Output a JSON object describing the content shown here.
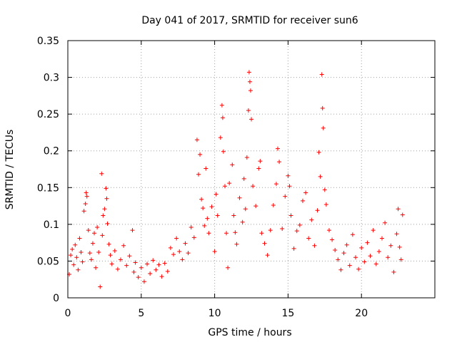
{
  "chart_data": {
    "type": "scatter",
    "title": "Day 041 of 2017, SRMTID for receiver sun6",
    "xlabel": "GPS time / hours",
    "ylabel": "SRMTID / TECUs",
    "xlim": [
      0,
      25
    ],
    "ylim": [
      0,
      0.35
    ],
    "xticks": [
      0,
      5,
      10,
      15,
      20
    ],
    "xtick_labels": [
      "0",
      "5",
      "10",
      "15",
      "20"
    ],
    "yticks": [
      0,
      0.05,
      0.1,
      0.15,
      0.2,
      0.25,
      0.3,
      0.35
    ],
    "ytick_labels": [
      "0",
      "0.05",
      "0.1",
      "0.15",
      "0.2",
      "0.25",
      "0.3",
      "0.35"
    ],
    "grid": true,
    "marker": "+",
    "color": "#ff0000",
    "series": [
      {
        "name": "SRMTID",
        "points": [
          [
            0.1,
            0.032
          ],
          [
            0.2,
            0.058
          ],
          [
            0.3,
            0.066
          ],
          [
            0.4,
            0.045
          ],
          [
            0.5,
            0.072
          ],
          [
            0.6,
            0.055
          ],
          [
            0.7,
            0.038
          ],
          [
            0.8,
            0.081
          ],
          [
            0.9,
            0.062
          ],
          [
            1.0,
            0.049
          ],
          [
            1.1,
            0.118
          ],
          [
            1.2,
            0.128
          ],
          [
            1.25,
            0.143
          ],
          [
            1.3,
            0.138
          ],
          [
            1.4,
            0.092
          ],
          [
            1.5,
            0.061
          ],
          [
            1.6,
            0.052
          ],
          [
            1.7,
            0.074
          ],
          [
            1.8,
            0.088
          ],
          [
            1.9,
            0.041
          ],
          [
            2.0,
            0.096
          ],
          [
            2.1,
            0.062
          ],
          [
            2.2,
            0.015
          ],
          [
            2.3,
            0.169
          ],
          [
            2.35,
            0.085
          ],
          [
            2.4,
            0.112
          ],
          [
            2.5,
            0.121
          ],
          [
            2.6,
            0.149
          ],
          [
            2.65,
            0.135
          ],
          [
            2.7,
            0.101
          ],
          [
            2.8,
            0.073
          ],
          [
            2.9,
            0.058
          ],
          [
            3.0,
            0.046
          ],
          [
            3.2,
            0.064
          ],
          [
            3.4,
            0.039
          ],
          [
            3.6,
            0.052
          ],
          [
            3.8,
            0.071
          ],
          [
            4.0,
            0.044
          ],
          [
            4.2,
            0.057
          ],
          [
            4.4,
            0.092
          ],
          [
            4.5,
            0.035
          ],
          [
            4.6,
            0.048
          ],
          [
            4.8,
            0.028
          ],
          [
            5.0,
            0.041
          ],
          [
            5.2,
            0.022
          ],
          [
            5.4,
            0.046
          ],
          [
            5.6,
            0.033
          ],
          [
            5.8,
            0.051
          ],
          [
            6.0,
            0.038
          ],
          [
            6.2,
            0.045
          ],
          [
            6.4,
            0.029
          ],
          [
            6.6,
            0.047
          ],
          [
            6.8,
            0.036
          ],
          [
            7.0,
            0.068
          ],
          [
            7.2,
            0.059
          ],
          [
            7.4,
            0.081
          ],
          [
            7.6,
            0.063
          ],
          [
            7.8,
            0.052
          ],
          [
            8.0,
            0.074
          ],
          [
            8.2,
            0.061
          ],
          [
            8.4,
            0.096
          ],
          [
            8.6,
            0.082
          ],
          [
            8.8,
            0.215
          ],
          [
            8.9,
            0.168
          ],
          [
            9.0,
            0.195
          ],
          [
            9.1,
            0.134
          ],
          [
            9.2,
            0.122
          ],
          [
            9.3,
            0.098
          ],
          [
            9.4,
            0.176
          ],
          [
            9.5,
            0.108
          ],
          [
            9.6,
            0.088
          ],
          [
            9.8,
            0.124
          ],
          [
            10.0,
            0.063
          ],
          [
            10.1,
            0.141
          ],
          [
            10.2,
            0.112
          ],
          [
            10.4,
            0.218
          ],
          [
            10.5,
            0.262
          ],
          [
            10.55,
            0.245
          ],
          [
            10.6,
            0.199
          ],
          [
            10.7,
            0.152
          ],
          [
            10.8,
            0.088
          ],
          [
            10.9,
            0.041
          ],
          [
            11.0,
            0.156
          ],
          [
            11.2,
            0.181
          ],
          [
            11.3,
            0.112
          ],
          [
            11.4,
            0.089
          ],
          [
            11.5,
            0.073
          ],
          [
            11.7,
            0.136
          ],
          [
            11.9,
            0.103
          ],
          [
            12.0,
            0.162
          ],
          [
            12.1,
            0.121
          ],
          [
            12.2,
            0.191
          ],
          [
            12.3,
            0.255
          ],
          [
            12.35,
            0.307
          ],
          [
            12.4,
            0.294
          ],
          [
            12.45,
            0.282
          ],
          [
            12.5,
            0.243
          ],
          [
            12.6,
            0.152
          ],
          [
            12.8,
            0.125
          ],
          [
            13.0,
            0.176
          ],
          [
            13.1,
            0.186
          ],
          [
            13.2,
            0.088
          ],
          [
            13.4,
            0.074
          ],
          [
            13.6,
            0.058
          ],
          [
            13.8,
            0.092
          ],
          [
            14.0,
            0.126
          ],
          [
            14.2,
            0.155
          ],
          [
            14.3,
            0.203
          ],
          [
            14.4,
            0.185
          ],
          [
            14.6,
            0.094
          ],
          [
            14.8,
            0.138
          ],
          [
            15.0,
            0.166
          ],
          [
            15.1,
            0.152
          ],
          [
            15.2,
            0.112
          ],
          [
            15.4,
            0.067
          ],
          [
            15.6,
            0.091
          ],
          [
            15.8,
            0.099
          ],
          [
            16.0,
            0.132
          ],
          [
            16.2,
            0.143
          ],
          [
            16.4,
            0.081
          ],
          [
            16.6,
            0.106
          ],
          [
            16.8,
            0.071
          ],
          [
            17.0,
            0.119
          ],
          [
            17.1,
            0.198
          ],
          [
            17.2,
            0.165
          ],
          [
            17.3,
            0.304
          ],
          [
            17.35,
            0.258
          ],
          [
            17.4,
            0.231
          ],
          [
            17.5,
            0.147
          ],
          [
            17.6,
            0.127
          ],
          [
            17.8,
            0.092
          ],
          [
            18.0,
            0.079
          ],
          [
            18.2,
            0.065
          ],
          [
            18.4,
            0.052
          ],
          [
            18.6,
            0.038
          ],
          [
            18.8,
            0.061
          ],
          [
            19.0,
            0.072
          ],
          [
            19.2,
            0.044
          ],
          [
            19.4,
            0.086
          ],
          [
            19.6,
            0.055
          ],
          [
            19.8,
            0.039
          ],
          [
            20.0,
            0.068
          ],
          [
            20.2,
            0.049
          ],
          [
            20.4,
            0.075
          ],
          [
            20.6,
            0.057
          ],
          [
            20.8,
            0.092
          ],
          [
            21.0,
            0.046
          ],
          [
            21.2,
            0.063
          ],
          [
            21.4,
            0.081
          ],
          [
            21.6,
            0.102
          ],
          [
            21.8,
            0.055
          ],
          [
            22.0,
            0.071
          ],
          [
            22.2,
            0.035
          ],
          [
            22.4,
            0.087
          ],
          [
            22.5,
            0.121
          ],
          [
            22.6,
            0.069
          ],
          [
            22.7,
            0.052
          ],
          [
            22.8,
            0.113
          ]
        ]
      }
    ]
  }
}
